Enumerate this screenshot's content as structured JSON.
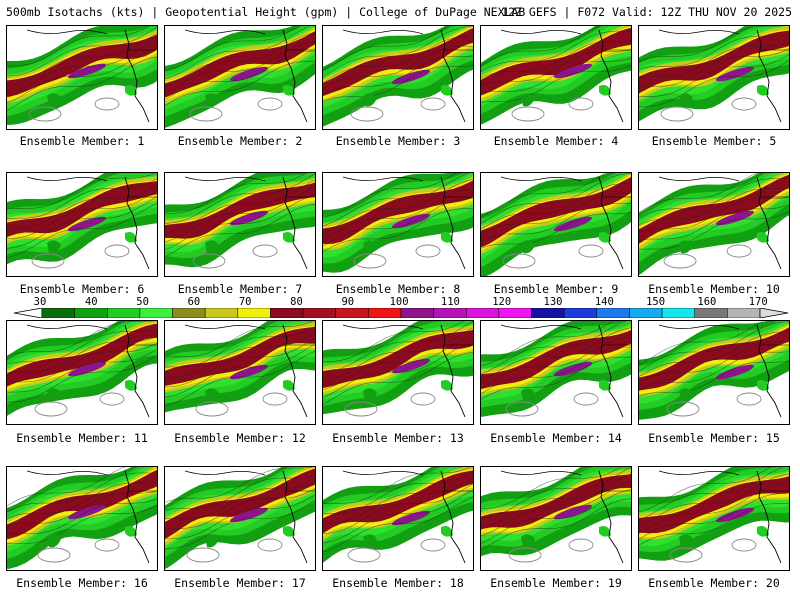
{
  "header": {
    "left_title": "500mb Isotachs (kts) | Geopotential Height (gpm) | College of DuPage NEXLAB",
    "right_title": "12Z GEFS | F072 Valid: 12Z THU NOV 20 2025"
  },
  "members": [
    {
      "label": "Ensemble Member: 1"
    },
    {
      "label": "Ensemble Member: 2"
    },
    {
      "label": "Ensemble Member: 3"
    },
    {
      "label": "Ensemble Member: 4"
    },
    {
      "label": "Ensemble Member: 5"
    },
    {
      "label": "Ensemble Member: 6"
    },
    {
      "label": "Ensemble Member: 7"
    },
    {
      "label": "Ensemble Member: 8"
    },
    {
      "label": "Ensemble Member: 9"
    },
    {
      "label": "Ensemble Member: 10"
    },
    {
      "label": "Ensemble Member: 11"
    },
    {
      "label": "Ensemble Member: 12"
    },
    {
      "label": "Ensemble Member: 13"
    },
    {
      "label": "Ensemble Member: 14"
    },
    {
      "label": "Ensemble Member: 15"
    },
    {
      "label": "Ensemble Member: 16"
    },
    {
      "label": "Ensemble Member: 17"
    },
    {
      "label": "Ensemble Member: 18"
    },
    {
      "label": "Ensemble Member: 19"
    },
    {
      "label": "Ensemble Member: 20"
    }
  ],
  "colorbar": {
    "ticks": [
      "30",
      "40",
      "50",
      "60",
      "70",
      "80",
      "90",
      "100",
      "110",
      "120",
      "130",
      "140",
      "150",
      "160",
      "170"
    ],
    "colors": [
      "#0a6e0a",
      "#12a012",
      "#22cc22",
      "#3df03d",
      "#8c8c1e",
      "#c8c81e",
      "#f0f00a",
      "#8b0a1e",
      "#a0101e",
      "#c8141e",
      "#f01414",
      "#8c148c",
      "#b414b4",
      "#dc14dc",
      "#f014f0",
      "#1414a0",
      "#1e3cdc",
      "#1e78f0",
      "#14aaf0",
      "#14e6f0",
      "#787878",
      "#b4b4b4"
    ],
    "under_color": "#ffffff",
    "over_color": "#dcdcdc"
  }
}
